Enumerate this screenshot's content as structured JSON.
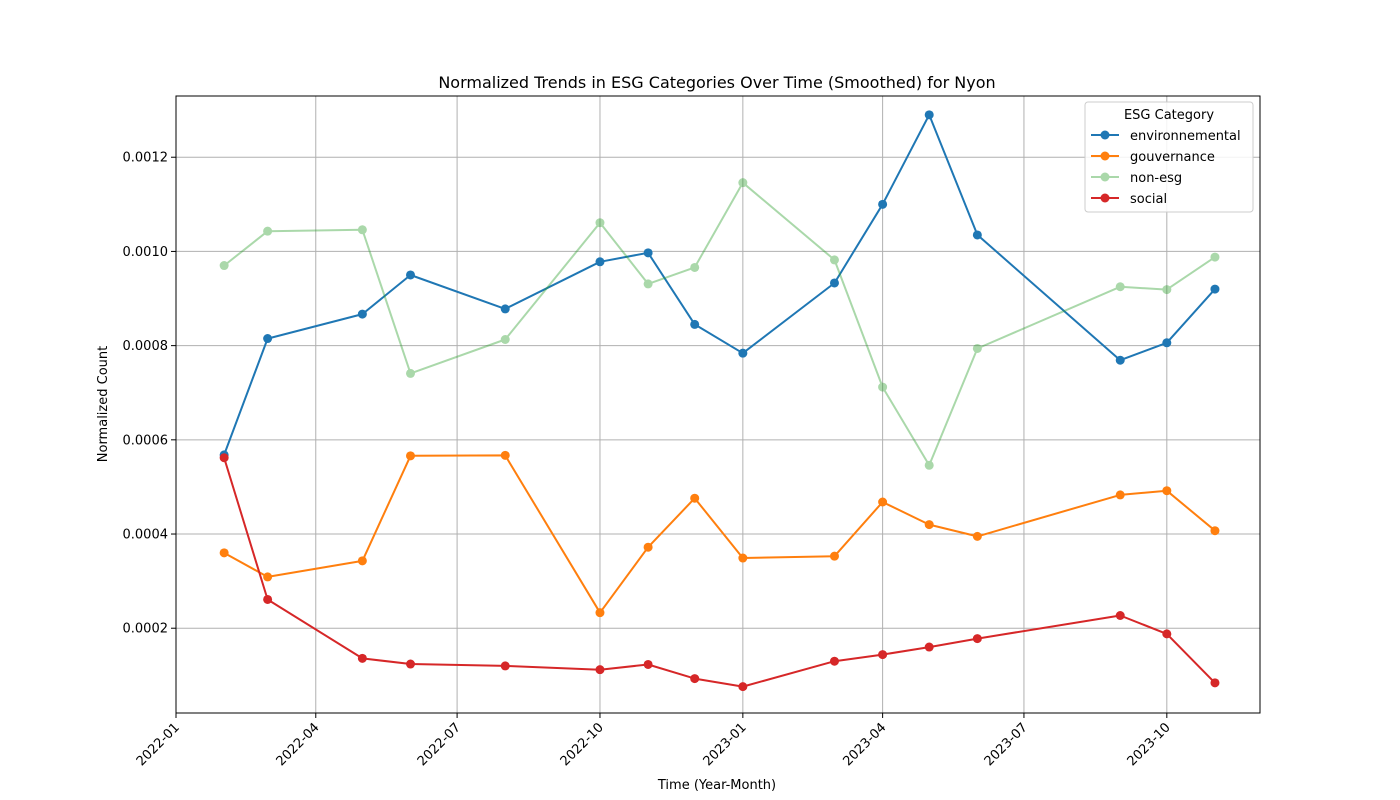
{
  "chart_data": {
    "type": "line",
    "title": "Normalized Trends in ESG Categories Over Time (Smoothed) for Nyon",
    "xlabel": "Time (Year-Month)",
    "ylabel": "Normalized Count",
    "xlim": [
      "2022-01-01",
      "2023-11-30"
    ],
    "ylim": [
      2e-05,
      0.00133
    ],
    "xticks": [
      "2022-01",
      "2022-04",
      "2022-07",
      "2022-10",
      "2023-01",
      "2023-04",
      "2023-07",
      "2023-10"
    ],
    "yticks": [
      "0.0002",
      "0.0004",
      "0.0006",
      "0.0008",
      "0.0010",
      "0.0012"
    ],
    "ytick_values": [
      0.0002,
      0.0004,
      0.0006,
      0.0008,
      0.001,
      0.0012
    ],
    "grid": true,
    "legend": {
      "title": "ESG Category",
      "placement": "top-right"
    },
    "x": [
      "2022-02",
      "2022-03",
      "2022-05",
      "2022-06",
      "2022-08",
      "2022-10",
      "2022-11",
      "2022-12",
      "2023-01",
      "2023-03",
      "2023-04",
      "2023-05",
      "2023-06",
      "2023-09",
      "2023-10",
      "2023-11"
    ],
    "series": [
      {
        "name": "environnemental",
        "color": "#1f77b4",
        "alpha": 1.0,
        "values": [
          0.000568,
          0.000815,
          0.000867,
          0.00095,
          0.000878,
          0.000978,
          0.000997,
          0.000845,
          0.000784,
          0.000933,
          0.0011,
          0.00129,
          0.001035,
          0.000769,
          0.000806,
          0.00092
        ]
      },
      {
        "name": "gouvernance",
        "color": "#ff7f0e",
        "alpha": 1.0,
        "values": [
          0.00036,
          0.000309,
          0.000343,
          0.000566,
          0.000567,
          0.000233,
          0.000372,
          0.000476,
          0.000349,
          0.000353,
          0.000468,
          0.00042,
          0.000395,
          0.000483,
          0.000492,
          0.000407
        ]
      },
      {
        "name": "non-esg",
        "color": "#2ca02c",
        "alpha": 0.4,
        "values": [
          0.00097,
          0.001043,
          0.001046,
          0.000741,
          0.000813,
          0.001061,
          0.000931,
          0.000966,
          0.001146,
          0.000982,
          0.000712,
          0.000546,
          0.000794,
          0.000925,
          0.000919,
          0.000988
        ]
      },
      {
        "name": "social",
        "color": "#d62728",
        "alpha": 1.0,
        "values": [
          0.000562,
          0.000261,
          0.000136,
          0.000124,
          0.00012,
          0.000112,
          0.000123,
          9.3e-05,
          7.6e-05,
          0.00013,
          0.000144,
          0.00016,
          0.000178,
          0.000227,
          0.000188,
          8.4e-05
        ]
      }
    ]
  }
}
